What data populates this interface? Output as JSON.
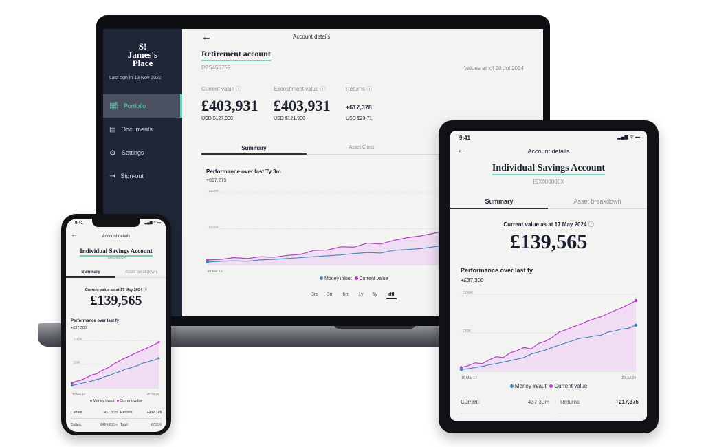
{
  "colors": {
    "sidebar": "#1e2638",
    "accent": "#6fd3b8",
    "current_value": "#b43cc4",
    "money": "#3b87b5",
    "fill": "#f0dcf3"
  },
  "laptop": {
    "brand_lines": [
      "S!",
      "James's",
      "Place"
    ],
    "last_login": "Last ogn in 13 Nov 2022",
    "nav": [
      {
        "label": "Portlolio",
        "icon": "chart-icon",
        "active": true
      },
      {
        "label": "Documents",
        "icon": "document-icon"
      },
      {
        "label": "Settings",
        "icon": "gear-icon"
      },
      {
        "label": "Sign-out",
        "icon": "sign-out-icon"
      }
    ],
    "header_title": "Account details",
    "account_name": "Retirement account",
    "account_id": "D2S456769",
    "values_as_of": "Values as of 20 Jul 2024",
    "metrics": [
      {
        "label": "Current value",
        "value": "£403,931",
        "sub": "USD $127,900"
      },
      {
        "label": "Exoosfiment value",
        "value": "£403,931",
        "sub": "USD $121,900"
      },
      {
        "label": "Returns",
        "value": "+617,378",
        "sub": "USD $23.71"
      }
    ],
    "tabs": [
      "Summary",
      "Asset Closs"
    ],
    "performance_title": "Performance over last Ty 3m",
    "performance_value": "+617,275",
    "ranges": [
      "3rs",
      "3m",
      "6m",
      "1y",
      "5y",
      "dtl"
    ],
    "selected_range": "dtl",
    "legend": [
      "Money inlout",
      "Current value"
    ]
  },
  "tablet": {
    "time": "9:41",
    "header_title": "Account details",
    "account_name": "Individual Savings Account",
    "account_id": "ISX000000X",
    "tabs": [
      "Summary",
      "Asset breakdown"
    ],
    "current_label": "Current value as at 17 May 2024",
    "current_value": "£139,565",
    "performance_title": "Performance over last fy",
    "performance_value": "+£37,300",
    "legend": [
      "Money in/aut",
      "Current value"
    ],
    "stats": [
      {
        "label": "Current",
        "value": "437,30m"
      },
      {
        "label": "Returns",
        "value": "+217,376"
      }
    ]
  },
  "phone": {
    "time": "9:41",
    "header_title": "Account details",
    "account_name": "Individual Savings Account",
    "account_id": "ISA000000X",
    "tabs": [
      "Summary",
      "Asset breakdown"
    ],
    "current_label": "Current value as at 17 May 2024",
    "current_value": "£139,565",
    "performance_title": "Performance over last fy",
    "performance_value": "+£37,300",
    "legend": [
      "Money in/aut",
      "Current value"
    ],
    "stats": [
      {
        "label": "Current",
        "value": "457,30m",
        "label2": "Returns",
        "value2": "+217,375"
      },
      {
        "label": "Dolbric",
        "value": "£424,230m",
        "label2": "Total",
        "value2": "£735,6"
      }
    ]
  },
  "chart_data": [
    {
      "type": "area",
      "ylim": [
        0,
        400
      ],
      "yticks": [
        {
          "value": 400,
          "label": "£000K"
        },
        {
          "value": 200,
          "label": "£200K"
        }
      ],
      "x_labels": [
        "53 Mar 17",
        ""
      ],
      "series": [
        {
          "name": "Current value",
          "values": [
            27,
            30,
            40,
            35,
            45,
            42,
            52,
            58,
            80,
            82,
            100,
            98,
            120,
            115,
            135,
            150,
            160,
            175,
            190,
            200,
            210,
            225,
            240,
            255,
            265,
            285
          ]
        },
        {
          "name": "Money inlout",
          "values": [
            15,
            20,
            22,
            20,
            28,
            30,
            35,
            40,
            45,
            50,
            55,
            62,
            68,
            65,
            80,
            85,
            90,
            100,
            110,
            118,
            128,
            135,
            145,
            148,
            165,
            188
          ]
        }
      ]
    },
    {
      "type": "area",
      "ylim": [
        -50,
        150
      ],
      "yticks": [
        {
          "value": 150,
          "label": "£150K"
        },
        {
          "value": 50,
          "label": "£50K"
        }
      ],
      "x_labels": [
        "16 Mar 17",
        "20 Jul 24"
      ],
      "series": [
        {
          "name": "Current value",
          "values": [
            -40,
            -35,
            -28,
            -30,
            -20,
            -12,
            -14,
            -2,
            4,
            12,
            8,
            22,
            28,
            38,
            52,
            58,
            66,
            72,
            80,
            86,
            92,
            100,
            108,
            115,
            124,
            134
          ]
        },
        {
          "name": "Money in/aut",
          "values": [
            -45,
            -43,
            -40,
            -37,
            -33,
            -30,
            -26,
            -22,
            -18,
            -14,
            -5,
            0,
            5,
            12,
            18,
            24,
            30,
            36,
            38,
            42,
            44,
            52,
            55,
            60,
            62,
            70
          ]
        }
      ]
    },
    {
      "type": "area",
      "ylim": [
        0,
        105
      ],
      "yticks": [
        {
          "value": 100,
          "label": "£100K"
        },
        {
          "value": 50,
          "label": "£50K"
        }
      ],
      "x_labels": [
        "16 Mar 17",
        "20 Jul 24"
      ],
      "series": [
        {
          "name": "Current value",
          "values": [
            10,
            14,
            16,
            20,
            24,
            28,
            30,
            36,
            40,
            44,
            50,
            55,
            60,
            64,
            68,
            72,
            76,
            80,
            84,
            88,
            92,
            97
          ]
        },
        {
          "name": "Money in/aut",
          "values": [
            5,
            7,
            9,
            11,
            13,
            15,
            18,
            20,
            24,
            26,
            30,
            33,
            36,
            40,
            42,
            45,
            48,
            52,
            54,
            57,
            59,
            63
          ]
        }
      ]
    }
  ]
}
